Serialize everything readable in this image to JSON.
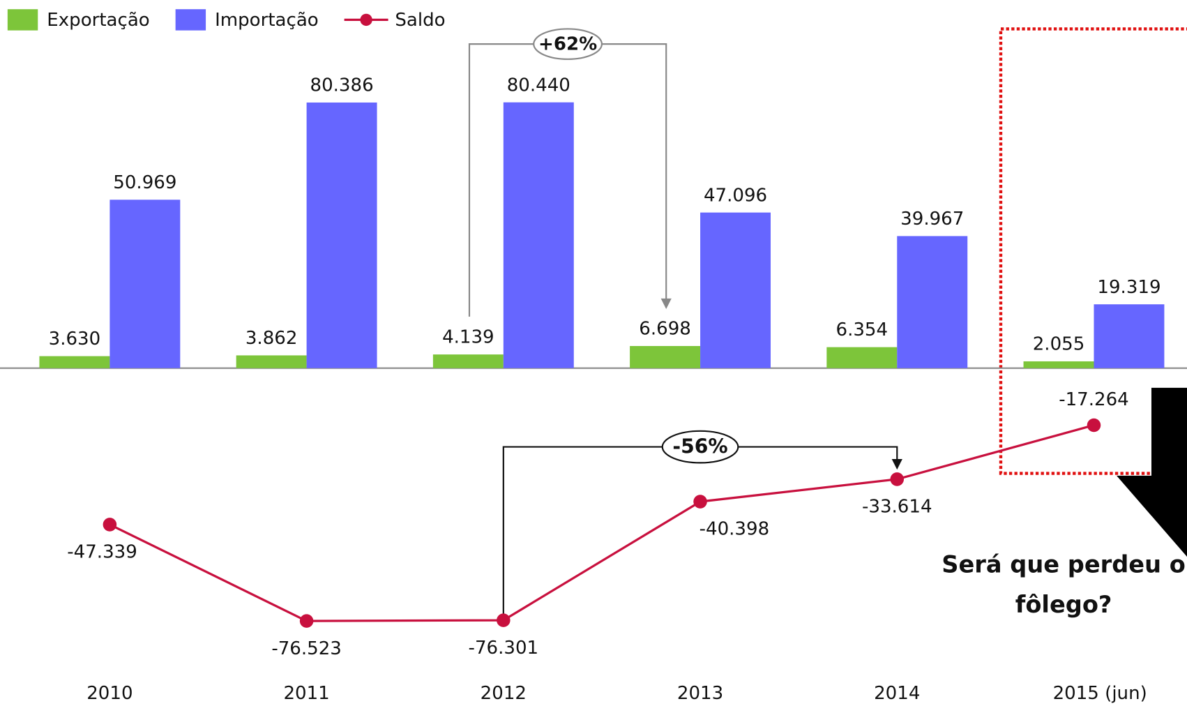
{
  "chart_data": {
    "type": "bar",
    "categories": [
      "2010",
      "2011",
      "2012",
      "2013",
      "2014",
      "2015 (jun)"
    ],
    "series": [
      {
        "name": "Exportação",
        "type": "bar",
        "color": "#7dc53a",
        "values": [
          3630,
          3862,
          4139,
          6698,
          6354,
          2055
        ],
        "value_labels": [
          "3.630",
          "3.862",
          "4.139",
          "6.698",
          "6.354",
          "2.055"
        ]
      },
      {
        "name": "Importação",
        "type": "bar",
        "color": "#6666ff",
        "values": [
          50969,
          80386,
          80440,
          47096,
          39967,
          19319
        ],
        "value_labels": [
          "50.969",
          "80.386",
          "80.440",
          "47.096",
          "39.967",
          "19.319"
        ]
      },
      {
        "name": "Saldo",
        "type": "line",
        "color": "#c8103e",
        "values": [
          -47339,
          -76523,
          -76301,
          -40398,
          -33614,
          -17264
        ],
        "value_labels": [
          "-47.339",
          "-76.523",
          "-76.301",
          "-40.398",
          "-33.614",
          "-17.264"
        ]
      }
    ],
    "annotations": [
      "+62%",
      "-56%",
      "Será que perdeu o",
      "fôlego?"
    ]
  }
}
